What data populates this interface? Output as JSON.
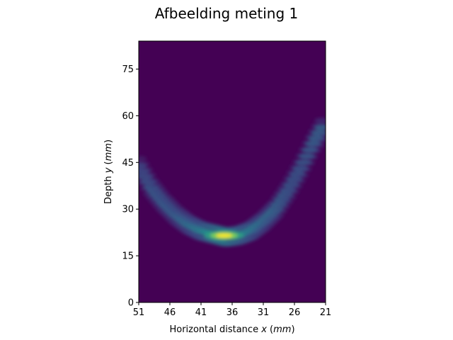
{
  "chart_data": {
    "type": "heatmap",
    "title": "Afbeelding meting 1",
    "xlabel": {
      "text": "Horizontal distance ",
      "var": "x",
      "unit": "mm"
    },
    "ylabel": {
      "text": "Depth ",
      "var": "y",
      "unit": "mm"
    },
    "xlim": [
      51,
      21
    ],
    "ylim": [
      0,
      84
    ],
    "x_ticks": [
      51,
      46,
      41,
      36,
      31,
      26,
      21
    ],
    "y_ticks": [
      0,
      15,
      30,
      45,
      60,
      75
    ],
    "colormap": "viridis",
    "background_color": "#440154",
    "curve": {
      "description": "U-shaped bright echo band",
      "x": [
        51,
        49,
        47,
        45,
        43,
        41,
        39,
        37,
        35,
        33,
        31,
        29,
        27,
        25,
        23,
        21
      ],
      "y": [
        44,
        37,
        32,
        28,
        25,
        23,
        22,
        21,
        21.5,
        23,
        26,
        30,
        36,
        43,
        51,
        58
      ],
      "intensity": [
        0.25,
        0.3,
        0.3,
        0.3,
        0.35,
        0.4,
        0.5,
        0.6,
        0.45,
        0.4,
        0.35,
        0.35,
        0.3,
        0.3,
        0.35,
        0.35
      ]
    },
    "peak": {
      "x": 37.3,
      "y": 21.5,
      "intensity": 1.0
    }
  }
}
